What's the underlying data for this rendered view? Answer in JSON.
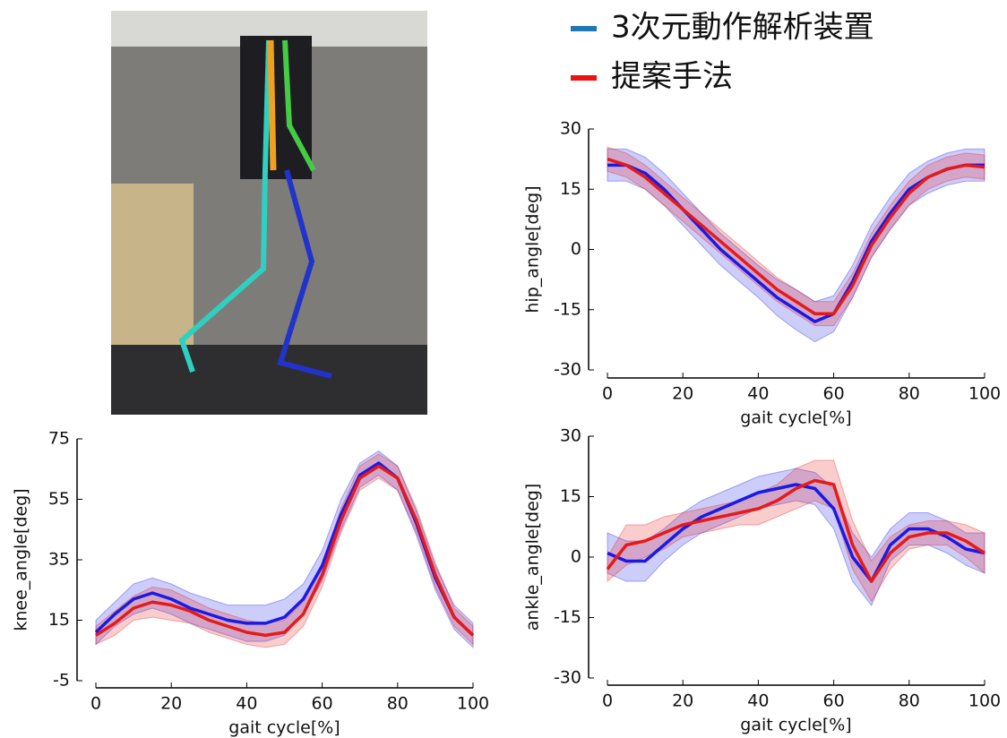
{
  "chart_data": [
    {
      "type": "line",
      "xlabel": "gait cycle[%]",
      "ylabel": "hip_angle[deg]",
      "x": [
        0,
        5,
        10,
        15,
        20,
        25,
        30,
        35,
        40,
        45,
        50,
        55,
        60,
        65,
        70,
        75,
        80,
        85,
        90,
        95,
        100
      ],
      "xlim": [
        0,
        100
      ],
      "xticks": [
        0,
        20,
        40,
        60,
        80,
        100
      ],
      "ylim": [
        -30,
        30
      ],
      "yticks": [
        -30,
        -15,
        0,
        15,
        30
      ],
      "series": [
        {
          "name": "3次元動作解析装置",
          "color": "#1a1ae6",
          "values": [
            21,
            21,
            19,
            15,
            10,
            5,
            0,
            -4,
            -8,
            -12,
            -15,
            -18,
            -16,
            -8,
            2,
            9,
            15,
            18,
            20,
            21,
            21
          ],
          "std": [
            4,
            4,
            4,
            4,
            4,
            4,
            4,
            4,
            4,
            4.5,
            5,
            5,
            4.5,
            4,
            4,
            4,
            4,
            4,
            4,
            4,
            4
          ]
        },
        {
          "name": "提案手法",
          "color": "#e61a1a",
          "values": [
            22.5,
            21,
            18,
            14,
            10,
            6,
            2,
            -2,
            -6,
            -10,
            -13,
            -16,
            -16,
            -9,
            1,
            8,
            14,
            18,
            20,
            21,
            20.5
          ],
          "std": [
            3,
            3,
            3,
            3,
            3,
            3,
            3,
            3,
            3,
            3,
            3,
            3,
            3,
            3,
            3,
            3,
            3,
            3,
            3,
            3,
            3
          ]
        }
      ]
    },
    {
      "type": "line",
      "xlabel": "gait cycle[%]",
      "ylabel": "knee_angle[deg]",
      "x": [
        0,
        5,
        10,
        15,
        20,
        25,
        30,
        35,
        40,
        45,
        50,
        55,
        60,
        65,
        70,
        75,
        80,
        85,
        90,
        95,
        100
      ],
      "xlim": [
        0,
        100
      ],
      "xticks": [
        0,
        20,
        40,
        60,
        80,
        100
      ],
      "ylim": [
        -5,
        75
      ],
      "yticks": [
        -5,
        15,
        35,
        55,
        75
      ],
      "series": [
        {
          "color": "#1a1ae6",
          "values": [
            11,
            17,
            22,
            24,
            22,
            19,
            17,
            15,
            14,
            14,
            16,
            22,
            33,
            50,
            63,
            67,
            62,
            47,
            29,
            16,
            10
          ],
          "std": [
            4,
            4,
            5,
            5,
            5,
            5,
            5,
            5,
            6,
            6,
            6,
            5,
            5,
            5,
            4,
            4,
            4,
            4,
            4,
            4,
            4
          ]
        },
        {
          "color": "#e61a1a",
          "values": [
            10,
            14,
            19,
            21,
            20,
            18,
            15,
            13,
            11,
            10,
            11,
            17,
            30,
            48,
            62,
            66,
            62,
            48,
            30,
            16,
            10
          ],
          "std": [
            3,
            4,
            4,
            5,
            5,
            4,
            4,
            4,
            4,
            4,
            4,
            4,
            4,
            4,
            4,
            4,
            4,
            4,
            4,
            3,
            3
          ]
        }
      ]
    },
    {
      "type": "line",
      "xlabel": "gait cycle[%]",
      "ylabel": "ankle_angle[deg]",
      "x": [
        0,
        5,
        10,
        15,
        20,
        25,
        30,
        35,
        40,
        45,
        50,
        55,
        60,
        65,
        70,
        75,
        80,
        85,
        90,
        95,
        100
      ],
      "xlim": [
        0,
        100
      ],
      "xticks": [
        0,
        20,
        40,
        60,
        80,
        100
      ],
      "ylim": [
        -30,
        30
      ],
      "yticks": [
        -30,
        -15,
        0,
        15,
        30
      ],
      "series": [
        {
          "color": "#1a1ae6",
          "values": [
            1,
            -1,
            -1,
            3,
            7,
            10,
            12,
            14,
            16,
            17,
            18,
            17,
            12,
            0,
            -6,
            3,
            7,
            7,
            5,
            2,
            1
          ],
          "std": [
            5,
            5,
            5,
            4,
            4,
            4,
            4,
            4,
            4,
            4,
            4,
            4,
            5,
            6,
            6,
            4,
            4,
            4,
            4,
            4,
            5
          ]
        },
        {
          "color": "#e61a1a",
          "values": [
            -3,
            3,
            4,
            6,
            8,
            9,
            10,
            11,
            12,
            14,
            17,
            19,
            18,
            3,
            -6,
            1,
            5,
            6,
            6,
            4,
            1
          ],
          "std": [
            3,
            5,
            4,
            4,
            3,
            3,
            3,
            3,
            4,
            4,
            5,
            5,
            6,
            6,
            5,
            4,
            3,
            3,
            3,
            4,
            5
          ]
        }
      ]
    }
  ]
}
